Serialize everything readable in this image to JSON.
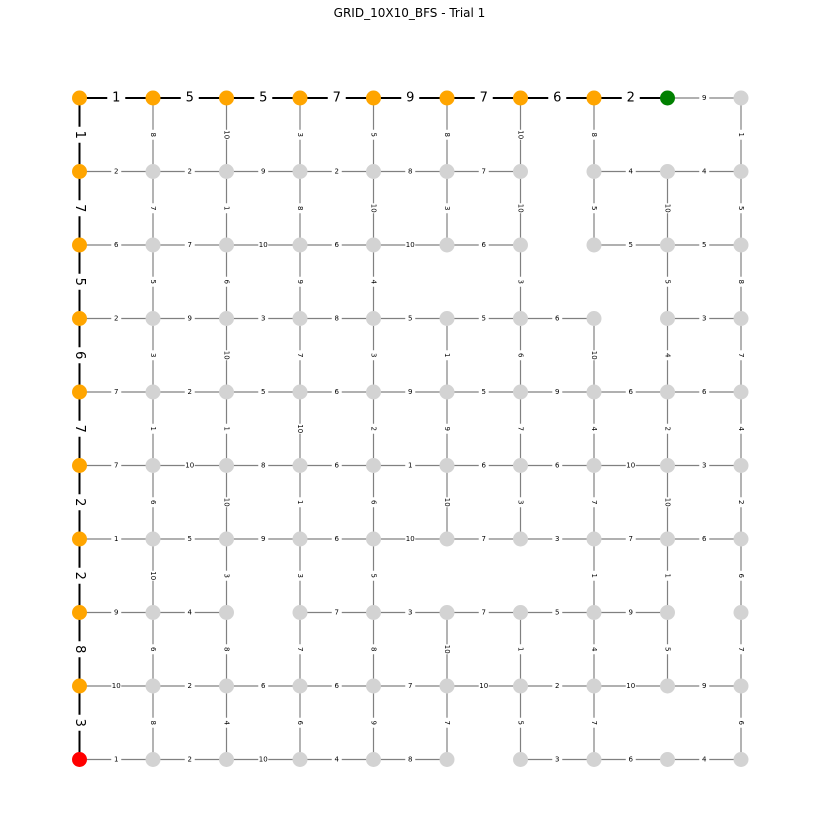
{
  "title": "GRID_10X10_BFS - Trial 1",
  "colors": {
    "visited": "#FFA500",
    "start": "#FF0000",
    "goal": "#008000",
    "unvisited": "#D3D3D3",
    "edge": "#808080",
    "path_edge": "#000000"
  },
  "grid": {
    "rows": 10,
    "cols": 10
  },
  "chart_data": {
    "type": "graph",
    "start": [
      9,
      0
    ],
    "goal": [
      0,
      8
    ],
    "path": [
      [
        9,
        0
      ],
      [
        8,
        0
      ],
      [
        7,
        0
      ],
      [
        6,
        0
      ],
      [
        5,
        0
      ],
      [
        4,
        0
      ],
      [
        3,
        0
      ],
      [
        2,
        0
      ],
      [
        1,
        0
      ],
      [
        0,
        0
      ],
      [
        0,
        1
      ],
      [
        0,
        2
      ],
      [
        0,
        3
      ],
      [
        0,
        4
      ],
      [
        0,
        5
      ],
      [
        0,
        6
      ],
      [
        0,
        7
      ],
      [
        0,
        8
      ]
    ],
    "h_weights": [
      [
        1,
        5,
        5,
        7,
        9,
        7,
        6,
        2,
        9
      ],
      [
        2,
        2,
        9,
        2,
        8,
        7,
        null,
        4,
        4
      ],
      [
        6,
        7,
        10,
        6,
        10,
        6,
        null,
        5,
        5
      ],
      [
        2,
        9,
        3,
        8,
        5,
        5,
        6,
        null,
        3
      ],
      [
        7,
        2,
        5,
        6,
        9,
        5,
        9,
        6,
        6
      ],
      [
        7,
        10,
        8,
        6,
        1,
        6,
        6,
        10,
        3
      ],
      [
        1,
        5,
        9,
        6,
        10,
        7,
        3,
        7,
        6
      ],
      [
        9,
        4,
        null,
        7,
        3,
        7,
        5,
        9,
        null
      ],
      [
        10,
        2,
        6,
        6,
        7,
        10,
        2,
        10,
        9
      ],
      [
        1,
        2,
        10,
        4,
        8,
        null,
        3,
        6,
        4
      ]
    ],
    "v_weights": [
      [
        1,
        8,
        10,
        3,
        5,
        8,
        10,
        8,
        null,
        1
      ],
      [
        7,
        7,
        1,
        8,
        10,
        3,
        10,
        5,
        10,
        5
      ],
      [
        5,
        5,
        6,
        9,
        4,
        null,
        3,
        null,
        5,
        8
      ],
      [
        6,
        3,
        10,
        7,
        3,
        1,
        6,
        10,
        4,
        7
      ],
      [
        7,
        1,
        1,
        10,
        2,
        9,
        7,
        4,
        2,
        4
      ],
      [
        2,
        6,
        10,
        1,
        6,
        10,
        3,
        7,
        10,
        2
      ],
      [
        2,
        10,
        3,
        3,
        5,
        null,
        null,
        1,
        1,
        6
      ],
      [
        8,
        6,
        8,
        7,
        8,
        10,
        1,
        4,
        5,
        7
      ],
      [
        3,
        8,
        4,
        6,
        9,
        7,
        5,
        7,
        null,
        6
      ]
    ]
  }
}
